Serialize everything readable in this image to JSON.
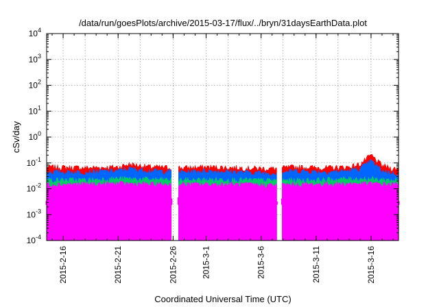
{
  "chart_data": {
    "type": "area",
    "title": "/data/run/goesPlots/archive/2015-03-17/flux/../bryn/31daysEarthData.plot",
    "xlabel": "Coordinated Universal Time (UTC)",
    "ylabel": "cSv/day",
    "y_scale": "log",
    "ylim": [
      0.0001,
      10000
    ],
    "xlim": [
      "2015-02-14T12:00",
      "2015-03-18T12:00"
    ],
    "grid": true,
    "legend": "none",
    "y_tick_labels": [
      {
        "base": "10",
        "exp": "-4",
        "value": 0.0001
      },
      {
        "base": "10",
        "exp": "-3",
        "value": 0.001
      },
      {
        "base": "10",
        "exp": "-2",
        "value": 0.01
      },
      {
        "base": "10",
        "exp": "-1",
        "value": 0.1
      },
      {
        "base": "10",
        "exp": "0",
        "value": 1
      },
      {
        "base": "10",
        "exp": "1",
        "value": 10
      },
      {
        "base": "10",
        "exp": "2",
        "value": 100
      },
      {
        "base": "10",
        "exp": "3",
        "value": 1000
      },
      {
        "base": "10",
        "exp": "4",
        "value": 10000
      }
    ],
    "x_tick_labels": [
      {
        "label": "2015-2-16",
        "date": "2015-02-16"
      },
      {
        "label": "2015-2-21",
        "date": "2015-02-21"
      },
      {
        "label": "2015-2-26",
        "date": "2015-02-26"
      },
      {
        "label": "2015-3-1",
        "date": "2015-03-01"
      },
      {
        "label": "2015-3-6",
        "date": "2015-03-06"
      },
      {
        "label": "2015-3-11",
        "date": "2015-03-11"
      },
      {
        "label": "2015-3-16",
        "date": "2015-03-16"
      }
    ],
    "x_grid_dates": [
      "2015-02-16",
      "2015-02-18",
      "2015-02-21",
      "2015-02-23",
      "2015-02-26",
      "2015-03-01",
      "2015-03-03",
      "2015-03-06",
      "2015-03-08",
      "2015-03-11",
      "2015-03-13",
      "2015-03-16"
    ],
    "data_gaps": [
      {
        "start": "2015-02-25T22:00",
        "end": "2015-02-26T10:00"
      },
      {
        "start": "2015-03-07T12:00",
        "end": "2015-03-07T20:00"
      }
    ],
    "series": [
      {
        "color": "#ff0000",
        "x": [
          "2015-02-15",
          "2015-02-18",
          "2015-02-21",
          "2015-02-22",
          "2015-02-24",
          "2015-02-27",
          "2015-03-01",
          "2015-03-04",
          "2015-03-07",
          "2015-03-09",
          "2015-03-12",
          "2015-03-14",
          "2015-03-15",
          "2015-03-16",
          "2015-03-17",
          "2015-03-18"
        ],
        "values": [
          0.07,
          0.065,
          0.07,
          0.09,
          0.07,
          0.065,
          0.07,
          0.065,
          0.06,
          0.07,
          0.065,
          0.07,
          0.09,
          0.2,
          0.08,
          0.06
        ]
      },
      {
        "color": "#0066ff",
        "x": [
          "2015-02-15",
          "2015-02-18",
          "2015-02-21",
          "2015-02-22",
          "2015-02-24",
          "2015-02-27",
          "2015-03-01",
          "2015-03-04",
          "2015-03-07",
          "2015-03-09",
          "2015-03-12",
          "2015-03-14",
          "2015-03-15",
          "2015-03-16",
          "2015-03-17",
          "2015-03-18"
        ],
        "values": [
          0.045,
          0.045,
          0.05,
          0.06,
          0.05,
          0.045,
          0.05,
          0.045,
          0.04,
          0.05,
          0.045,
          0.05,
          0.06,
          0.12,
          0.05,
          0.04
        ]
      },
      {
        "color": "#00cc66",
        "x": [
          "2015-02-15",
          "2015-02-18",
          "2015-02-21",
          "2015-02-24",
          "2015-02-27",
          "2015-03-03",
          "2015-03-07",
          "2015-03-11",
          "2015-03-15",
          "2015-03-18"
        ],
        "values": [
          0.022,
          0.022,
          0.025,
          0.023,
          0.022,
          0.023,
          0.021,
          0.022,
          0.025,
          0.022
        ]
      },
      {
        "color": "#ff00ff",
        "x": [
          "2015-02-15",
          "2015-02-18",
          "2015-02-21",
          "2015-02-24",
          "2015-02-27",
          "2015-03-03",
          "2015-03-07",
          "2015-03-11",
          "2015-03-15",
          "2015-03-18"
        ],
        "values": [
          0.015,
          0.015,
          0.016,
          0.015,
          0.015,
          0.015,
          0.014,
          0.015,
          0.016,
          0.015
        ],
        "floor": 0.004
      }
    ],
    "magenta_dropouts_to_min": [
      "2015-02-17T21:00",
      "2015-02-20T03:00",
      "2015-02-25T12:00",
      "2015-02-25T18:00",
      "2015-02-26T15:00",
      "2015-02-26T20:00",
      "2015-03-04T12:00",
      "2015-03-05T12:00",
      "2015-03-05T20:00",
      "2015-03-06T10:00",
      "2015-03-06T16:00",
      "2015-03-07T02:00",
      "2015-03-07T06:00",
      "2015-03-08T09:00",
      "2015-03-08T12:00",
      "2015-03-09T04:00",
      "2015-03-10T15:00",
      "2015-03-13T09:00"
    ]
  }
}
